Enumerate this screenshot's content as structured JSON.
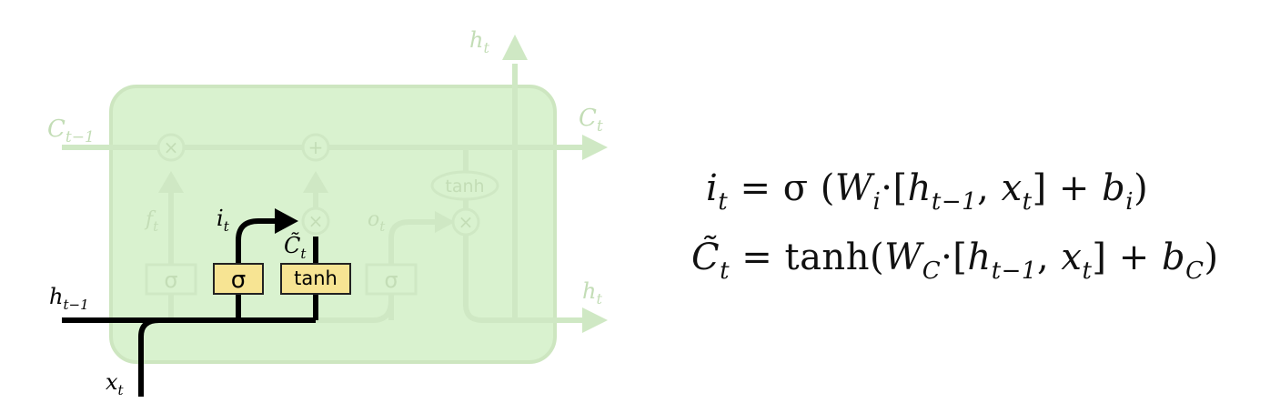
{
  "diagram": {
    "faded_color": "#cfe8c4",
    "cell_fill": "#d9f2cf",
    "gate_fill": "#f7e493",
    "active_color": "#000000",
    "labels": {
      "c_prev": "C",
      "c_prev_sub": "t−1",
      "c_next": "C",
      "c_next_sub": "t",
      "h_top": "h",
      "h_top_sub": "t",
      "h_right": "h",
      "h_right_sub": "t",
      "h_prev": "h",
      "h_prev_sub": "t−1",
      "x_in": "x",
      "x_in_sub": "t",
      "f_gate": "f",
      "f_gate_sub": "t",
      "i_gate": "i",
      "i_gate_sub": "t",
      "c_tilde": "C̃",
      "c_tilde_sub": "t",
      "o_gate": "o",
      "o_gate_sub": "t"
    },
    "ops": {
      "multiply": "×",
      "add": "+"
    },
    "gates": {
      "forget": "σ",
      "input": "σ",
      "candidate": "tanh",
      "output": "σ",
      "cell_tanh": "tanh"
    }
  },
  "equations": {
    "line1": {
      "lhs": "i",
      "lhs_sub": "t",
      "rhs_pre": "= σ (",
      "w": "W",
      "w_sub": "i",
      "mid": "·[",
      "h": "h",
      "h_sub": "t−1",
      "comma": ", ",
      "x": "x",
      "x_sub": "t",
      "close": "]  +  ",
      "b": "b",
      "b_sub": "i",
      "end": ")"
    },
    "line2": {
      "lhs": "C̃",
      "lhs_sub": "t",
      "rhs_pre": "= tanh(",
      "w": "W",
      "w_sub": "C",
      "mid": "·[",
      "h": "h",
      "h_sub": "t−1",
      "comma": ", ",
      "x": "x",
      "x_sub": "t",
      "close": "]  +  ",
      "b": "b",
      "b_sub": "C",
      "end": ")"
    }
  }
}
